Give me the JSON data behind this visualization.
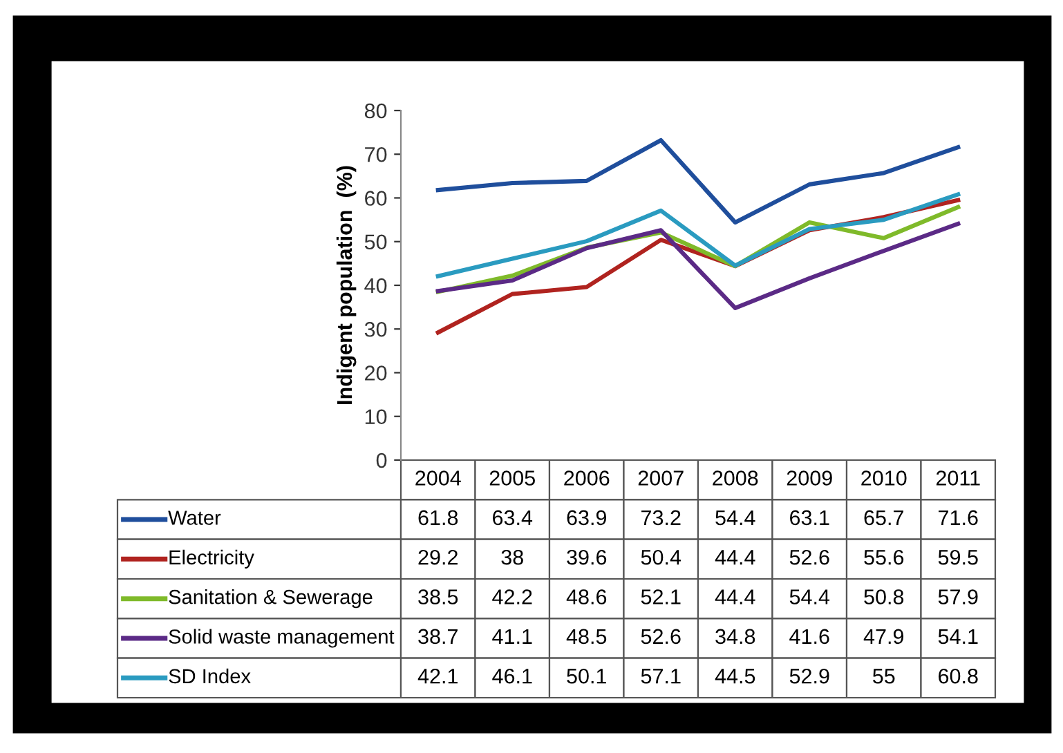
{
  "chart_data": {
    "type": "line",
    "ylabel": "Indigent population  (%)",
    "categories": [
      "2004",
      "2005",
      "2006",
      "2007",
      "2008",
      "2009",
      "2010",
      "2011"
    ],
    "series": [
      {
        "name": "Water",
        "color": "#1f4e9c",
        "values": [
          61.8,
          63.4,
          63.9,
          73.2,
          54.4,
          63.1,
          65.7,
          71.6
        ]
      },
      {
        "name": "Electricity",
        "color": "#b0231f",
        "values": [
          29.2,
          38,
          39.6,
          50.4,
          44.4,
          52.6,
          55.6,
          59.5
        ]
      },
      {
        "name": "Sanitation & Sewerage",
        "color": "#7fba2a",
        "values": [
          38.5,
          42.2,
          48.6,
          52.1,
          44.4,
          54.4,
          50.8,
          57.9
        ]
      },
      {
        "name": "Solid waste management",
        "color": "#5b2a86",
        "values": [
          38.7,
          41.1,
          48.5,
          52.6,
          34.8,
          41.6,
          47.9,
          54.1
        ]
      },
      {
        "name": "SD Index",
        "color": "#2a9bc0",
        "values": [
          42.1,
          46.1,
          50.1,
          57.1,
          44.5,
          52.9,
          55,
          60.8
        ]
      }
    ],
    "ylim": [
      0,
      80
    ],
    "yticks": [
      0,
      10,
      20,
      30,
      40,
      50,
      60,
      70,
      80
    ],
    "grid": false,
    "legend": "bottom",
    "tick_labels": "y",
    "data_labels": true,
    "marker": "none",
    "line_style": "solid"
  }
}
